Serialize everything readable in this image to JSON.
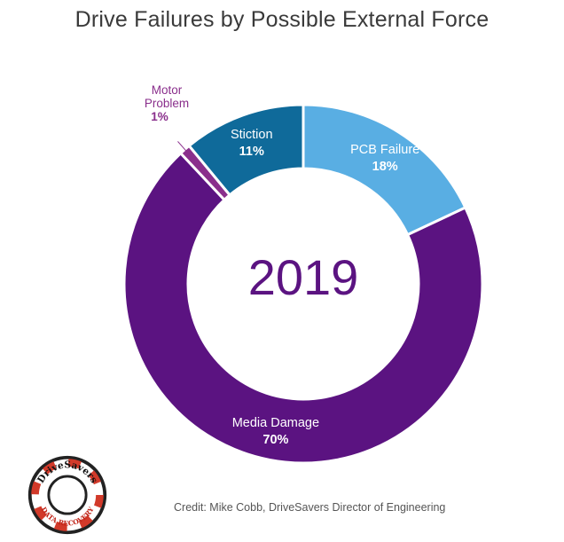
{
  "chart_data": {
    "type": "pie",
    "title": "Drive Failures by Possible External Force",
    "center_label": "2019",
    "slices": [
      {
        "label": "PCB Failure",
        "value": 18,
        "value_label": "18%",
        "color": "#59aee3"
      },
      {
        "label": "Media Damage",
        "value": 70,
        "value_label": "70%",
        "color": "#5b1381"
      },
      {
        "label": "Motor Problem",
        "value": 1,
        "value_label": "1%",
        "color": "#8a2f8c"
      },
      {
        "label": "Stiction",
        "value": 11,
        "value_label": "11%",
        "color": "#0f6a9a"
      }
    ]
  },
  "credit": "Credit: Mike Cobb, DriveSavers Director of Engineering",
  "logo": {
    "icon": "drivesavers-lifebuoy-logo-icon",
    "text_top": "DriveSavers",
    "text_bottom": "DATA RECOVERY"
  }
}
